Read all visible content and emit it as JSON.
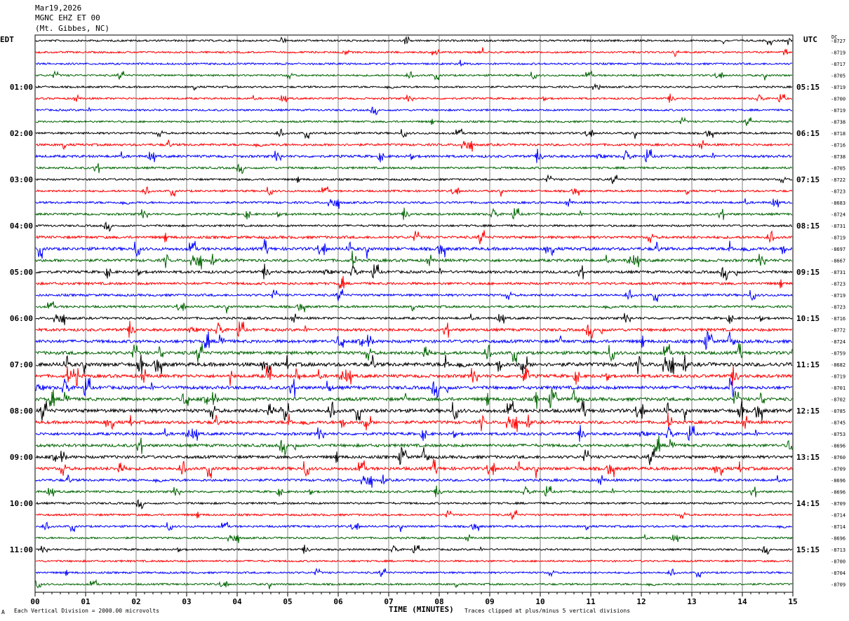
{
  "header": {
    "date": "Mar19,2026",
    "station": "MGNC EHZ ET 00",
    "location": "(Mt. Gibbes, NC)"
  },
  "left_tz": "EDT",
  "right_tz": "UTC",
  "dc_label": "DC",
  "footer": {
    "scale": "Each Vertical Division = 2000.00 microvolts",
    "clip": "Traces clipped at plus/minus 5 vertical divisions",
    "corner_mark": "A"
  },
  "chart_data": {
    "type": "line",
    "xlabel": "TIME (MINUTES)",
    "x_ticks": [
      "00",
      "01",
      "02",
      "03",
      "04",
      "05",
      "06",
      "07",
      "08",
      "09",
      "10",
      "11",
      "12",
      "13",
      "14",
      "15"
    ],
    "xlim": [
      0,
      15
    ],
    "trace_colors": [
      "#000000",
      "#ff0000",
      "#0000ff",
      "#006400"
    ],
    "left_hour_labels": [
      "01:00",
      "02:00",
      "03:00",
      "04:00",
      "05:00",
      "06:00",
      "07:00",
      "08:00",
      "09:00",
      "10:00",
      "11:00"
    ],
    "right_hour_labels": [
      "05:15",
      "06:15",
      "07:15",
      "08:15",
      "09:15",
      "10:15",
      "11:15",
      "12:15",
      "13:15",
      "14:15",
      "15:15"
    ],
    "dc_offsets": [
      "-8727",
      "-8719",
      "-8717",
      "-8705",
      "-8719",
      "-8700",
      "-8719",
      "-8738",
      "-8718",
      "-8716",
      "-8738",
      "-8705",
      "-8722",
      "-8723",
      "-8683",
      "-8724",
      "-8731",
      "-8719",
      "-8697",
      "-8667",
      "-8731",
      "-8723",
      "-8719",
      "-8723",
      "-8716",
      "-8772",
      "-8724",
      "-8759",
      "-8682",
      "-8719",
      "-8701",
      "-8702",
      "-8785",
      "-8745",
      "-8753",
      "-8696",
      "-8760",
      "-8709",
      "-8696",
      "-8696",
      "-8709",
      "-8714",
      "-8714",
      "-8696",
      "-8713",
      "-8700",
      "-8704",
      "-8709"
    ],
    "activity": [
      1.0,
      1.0,
      1.0,
      1.0,
      1.0,
      1.0,
      1.0,
      1.0,
      1.2,
      1.6,
      1.8,
      1.3,
      1.1,
      1.2,
      1.4,
      1.5,
      1.2,
      2.0,
      2.5,
      2.2,
      2.0,
      1.8,
      1.6,
      1.5,
      1.6,
      2.2,
      2.6,
      2.8,
      3.5,
      2.8,
      2.8,
      2.8,
      3.2,
      2.6,
      2.2,
      2.4,
      2.4,
      2.6,
      1.8,
      1.4,
      1.2,
      1.2,
      1.2,
      1.1,
      1.0,
      1.0,
      1.0,
      1.0
    ]
  }
}
